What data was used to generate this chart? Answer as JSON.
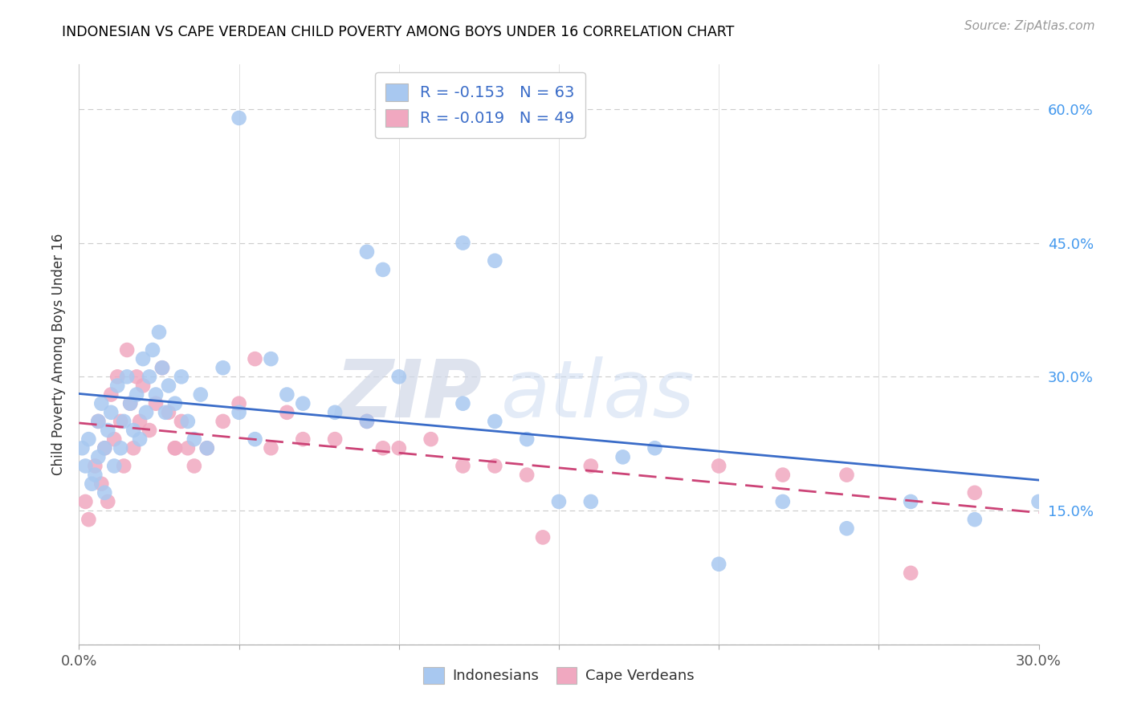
{
  "title": "INDONESIAN VS CAPE VERDEAN CHILD POVERTY AMONG BOYS UNDER 16 CORRELATION CHART",
  "source": "Source: ZipAtlas.com",
  "ylabel": "Child Poverty Among Boys Under 16",
  "xlim": [
    0.0,
    0.3
  ],
  "ylim": [
    0.0,
    0.65
  ],
  "x_ticks": [
    0.0,
    0.05,
    0.1,
    0.15,
    0.2,
    0.25,
    0.3
  ],
  "x_tick_labels": [
    "0.0%",
    "",
    "",
    "",
    "",
    "",
    "30.0%"
  ],
  "y_ticks": [
    0.0,
    0.15,
    0.3,
    0.45,
    0.6
  ],
  "y_tick_labels": [
    "",
    "15.0%",
    "30.0%",
    "45.0%",
    "60.0%"
  ],
  "indonesian_R": "-0.153",
  "indonesian_N": "63",
  "capeverdean_R": "-0.019",
  "capeverdean_N": "49",
  "indonesian_color": "#a8c8f0",
  "capeverdean_color": "#f0a8c0",
  "indonesian_line_color": "#3a6cc8",
  "capeverdean_line_color": "#cc4477",
  "watermark_zip": "ZIP",
  "watermark_atlas": "atlas",
  "indonesian_x": [
    0.001,
    0.002,
    0.003,
    0.004,
    0.005,
    0.006,
    0.006,
    0.007,
    0.008,
    0.008,
    0.009,
    0.01,
    0.011,
    0.012,
    0.013,
    0.014,
    0.015,
    0.016,
    0.017,
    0.018,
    0.019,
    0.02,
    0.021,
    0.022,
    0.023,
    0.024,
    0.025,
    0.026,
    0.027,
    0.028,
    0.03,
    0.032,
    0.034,
    0.036,
    0.038,
    0.04,
    0.045,
    0.05,
    0.055,
    0.06,
    0.065,
    0.07,
    0.08,
    0.09,
    0.1,
    0.12,
    0.13,
    0.14,
    0.15,
    0.16,
    0.17,
    0.18,
    0.2,
    0.22,
    0.24,
    0.26,
    0.28,
    0.3,
    0.05,
    0.09,
    0.095,
    0.12,
    0.13
  ],
  "indonesian_y": [
    0.22,
    0.2,
    0.23,
    0.18,
    0.19,
    0.25,
    0.21,
    0.27,
    0.22,
    0.17,
    0.24,
    0.26,
    0.2,
    0.29,
    0.22,
    0.25,
    0.3,
    0.27,
    0.24,
    0.28,
    0.23,
    0.32,
    0.26,
    0.3,
    0.33,
    0.28,
    0.35,
    0.31,
    0.26,
    0.29,
    0.27,
    0.3,
    0.25,
    0.23,
    0.28,
    0.22,
    0.31,
    0.26,
    0.23,
    0.32,
    0.28,
    0.27,
    0.26,
    0.25,
    0.3,
    0.27,
    0.25,
    0.23,
    0.16,
    0.16,
    0.21,
    0.22,
    0.09,
    0.16,
    0.13,
    0.16,
    0.14,
    0.16,
    0.59,
    0.44,
    0.42,
    0.45,
    0.43
  ],
  "capeverdean_x": [
    0.002,
    0.003,
    0.005,
    0.006,
    0.007,
    0.008,
    0.009,
    0.01,
    0.011,
    0.012,
    0.013,
    0.014,
    0.015,
    0.016,
    0.017,
    0.018,
    0.019,
    0.02,
    0.022,
    0.024,
    0.026,
    0.028,
    0.03,
    0.032,
    0.034,
    0.036,
    0.04,
    0.045,
    0.05,
    0.06,
    0.065,
    0.07,
    0.08,
    0.09,
    0.1,
    0.11,
    0.12,
    0.13,
    0.14,
    0.16,
    0.2,
    0.22,
    0.24,
    0.26,
    0.28,
    0.03,
    0.055,
    0.095,
    0.145
  ],
  "capeverdean_y": [
    0.16,
    0.14,
    0.2,
    0.25,
    0.18,
    0.22,
    0.16,
    0.28,
    0.23,
    0.3,
    0.25,
    0.2,
    0.33,
    0.27,
    0.22,
    0.3,
    0.25,
    0.29,
    0.24,
    0.27,
    0.31,
    0.26,
    0.22,
    0.25,
    0.22,
    0.2,
    0.22,
    0.25,
    0.27,
    0.22,
    0.26,
    0.23,
    0.23,
    0.25,
    0.22,
    0.23,
    0.2,
    0.2,
    0.19,
    0.2,
    0.2,
    0.19,
    0.19,
    0.08,
    0.17,
    0.22,
    0.32,
    0.22,
    0.12
  ]
}
